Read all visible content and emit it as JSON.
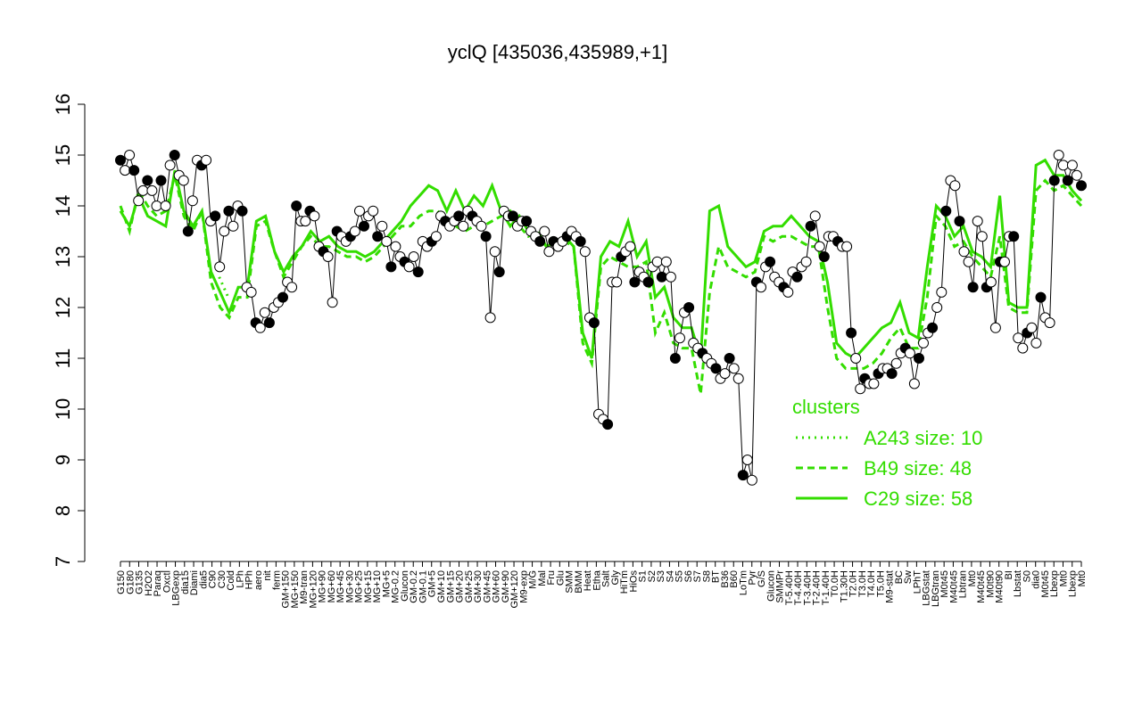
{
  "chart_data": {
    "type": "line",
    "title": "yclQ [435036,435989,+1]",
    "xlabel": "",
    "ylabel": "",
    "ylim": [
      7,
      16
    ],
    "yticks": [
      7,
      8,
      9,
      10,
      11,
      12,
      13,
      14,
      15,
      16
    ],
    "grid": false,
    "legend_placement": "bottom-right",
    "x_tick_labels": [
      "G150",
      "G180",
      "G135",
      "H2O2",
      "Paraq",
      "Oxctl",
      "LBGexp",
      "dia15",
      "Diami",
      "dia5",
      "C90",
      "C30",
      "Cold",
      "LPh",
      "HPh",
      "aero",
      "nit",
      "ferm",
      "GM+150",
      "MG+150",
      "M9-tran",
      "MG+120",
      "MG+90",
      "MG+60",
      "MG+45",
      "MG+30",
      "MG+25",
      "MG+15",
      "MG+10",
      "MG+5",
      "MG-0.2",
      "Glucon",
      "GM-0.2",
      "GM-0.1",
      "GM+5",
      "GM+10",
      "GM+15",
      "GM+20",
      "GM+25",
      "GM+30",
      "GM+45",
      "GM+60",
      "GM+90",
      "GM+120",
      "M9-exp",
      "M/G",
      "Mal",
      "Fru",
      "Glu",
      "SMM",
      "BMM",
      "Heat",
      "Etha",
      "Salt",
      "Gly",
      "HiTm",
      "HiOs",
      "S1",
      "S2",
      "S3",
      "S4",
      "S5",
      "S6",
      "S7",
      "S8",
      "BT",
      "B36",
      "B60",
      "LoTm",
      "Pyr",
      "G/S",
      "Glucon",
      "SMMPr",
      "T-5.40H",
      "T-4.40H",
      "T-3.40H",
      "T-2.40H",
      "T-1.40H",
      "T0.0H",
      "T1.30H",
      "T2.0H",
      "T3.0H",
      "T4.0H",
      "T5.0H",
      "M9-stat",
      "BC",
      "Sw",
      "LPhT",
      "LBGstat",
      "LBGtran",
      "M0t45",
      "M40t45",
      "Lbtran",
      "Mt0",
      "M40t45",
      "M0t90",
      "M40t90",
      "BI",
      "Lbstat",
      "S0",
      "dia0",
      "M0t45",
      "Lbexp",
      "Mt0",
      "Lbexp",
      "Mt0"
    ],
    "series": [
      {
        "type": "points",
        "values": [
          14.9,
          14.7,
          15.0,
          14.7,
          14.1,
          14.3,
          14.5,
          14.3,
          14.0,
          14.5,
          14.0,
          14.8,
          15.0,
          14.6,
          14.5,
          13.5,
          14.1,
          14.9,
          14.8,
          14.9,
          13.7,
          13.8,
          12.8,
          13.5,
          13.9,
          13.6,
          14.0,
          13.9,
          12.4,
          12.3,
          11.7,
          11.6,
          11.9,
          11.7,
          12.0,
          12.1,
          12.2,
          12.5,
          12.4,
          14.0,
          13.7,
          13.7,
          13.9,
          13.8,
          13.2,
          13.1,
          13.0,
          12.1,
          13.5,
          13.4,
          13.3,
          13.4,
          13.5,
          13.9,
          13.6,
          13.8,
          13.9,
          13.4,
          13.6,
          13.3,
          12.8,
          13.2,
          13.0,
          12.9,
          12.8,
          13.0,
          12.7,
          13.3,
          13.2,
          13.3,
          13.4,
          13.8,
          13.7,
          13.6,
          13.7,
          13.8,
          13.6,
          13.9,
          13.8,
          13.7,
          13.6,
          13.4,
          11.8,
          13.1,
          12.7,
          13.9,
          13.8,
          13.8,
          13.6,
          13.7,
          13.7,
          13.5,
          13.4,
          13.3,
          13.5,
          13.1,
          13.3,
          13.2,
          13.3,
          13.4,
          13.5,
          13.4,
          13.3,
          13.1,
          11.8,
          11.7,
          9.9,
          9.8,
          9.7,
          12.5,
          12.5,
          13.0,
          13.1,
          13.2,
          12.5,
          12.7,
          12.6,
          12.5,
          12.8,
          12.9,
          12.6,
          12.9,
          12.6,
          11.0,
          11.4,
          11.9,
          12.0,
          11.3,
          11.2,
          11.1,
          11.0,
          10.9,
          10.8,
          10.6,
          10.7,
          11.0,
          10.8,
          10.6,
          8.7,
          9.0,
          8.6,
          12.5,
          12.4,
          12.8,
          12.9,
          12.6,
          12.5,
          12.4,
          12.3,
          12.7,
          12.6,
          12.8,
          12.9,
          13.6,
          13.8,
          13.2,
          13.0,
          13.4,
          13.4,
          13.3,
          13.2,
          13.2,
          11.5,
          11.0,
          10.4,
          10.6,
          10.5,
          10.5,
          10.7,
          10.8,
          10.8,
          10.7,
          10.9,
          11.1,
          11.2,
          11.1,
          10.5,
          11.0,
          11.3,
          11.5,
          11.6,
          12.0,
          12.3,
          13.9,
          14.5,
          14.4,
          13.7,
          13.1,
          12.9,
          12.4,
          13.7,
          13.4,
          12.4,
          12.5,
          11.6,
          12.9,
          12.9,
          13.4,
          13.4,
          11.4,
          11.2,
          11.5,
          11.6,
          11.3,
          12.2,
          11.8,
          11.7,
          14.5,
          15.0,
          14.8,
          14.5,
          14.8,
          14.6,
          14.4
        ]
      }
    ],
    "legend": {
      "title": "clusters",
      "entries": [
        {
          "label": "A243 size: 10",
          "style": "dotted",
          "values": [
            null,
            null,
            null,
            null,
            null,
            null,
            null,
            null,
            null,
            null,
            null,
            12.6,
            12.2,
            null,
            null,
            null,
            null,
            null,
            null,
            null,
            null,
            null,
            null,
            null,
            null,
            null,
            null,
            null,
            null,
            null,
            null,
            null,
            null,
            null,
            null,
            null,
            null,
            null,
            null,
            null,
            null,
            null,
            null,
            null,
            null,
            null,
            null,
            null,
            null,
            null,
            null,
            null,
            10.4,
            null,
            null,
            null,
            null,
            null,
            null,
            null,
            10.7,
            null,
            null,
            null,
            10.5,
            null,
            null,
            null,
            null,
            null,
            null,
            null,
            null,
            null,
            null,
            null,
            null,
            null,
            null,
            null,
            null,
            null,
            null,
            null,
            null,
            null,
            null,
            null,
            null,
            null,
            null,
            null,
            null,
            null,
            null,
            null,
            null,
            null,
            null,
            null,
            null,
            null,
            null,
            null,
            null,
            null,
            null,
            null
          ]
        },
        {
          "label": "B49 size: 48",
          "style": "dashed",
          "values": [
            14.0,
            13.5,
            14.3,
            14.0,
            13.8,
            13.9,
            14.6,
            13.8,
            13.5,
            13.9,
            12.5,
            12.0,
            11.8,
            12.2,
            12.2,
            13.6,
            13.7,
            13.1,
            12.6,
            12.9,
            13.2,
            13.4,
            13.2,
            13.2,
            13.1,
            13.0,
            13.0,
            12.9,
            13.0,
            13.2,
            13.4,
            13.6,
            13.6,
            13.8,
            13.9,
            13.9,
            13.7,
            13.6,
            13.5,
            13.6,
            13.6,
            13.7,
            13.8,
            13.9,
            13.6,
            13.4,
            13.5,
            13.2,
            13.3,
            13.3,
            13.2,
            11.3,
            10.9,
            12.8,
            13.0,
            12.9,
            12.8,
            12.8,
            12.9,
            11.5,
            11.9,
            11.3,
            11.2,
            11.2,
            10.3,
            12.3,
            13.2,
            12.8,
            12.7,
            12.6,
            12.7,
            13.4,
            13.3,
            13.4,
            13.4,
            13.3,
            13.2,
            13.2,
            12.0,
            11.0,
            10.8,
            10.8,
            10.8,
            10.9,
            11.1,
            11.4,
            11.6,
            11.2,
            11.2,
            12.2,
            13.8,
            13.6,
            13.2,
            13.3,
            13.0,
            12.8,
            12.6,
            13.4,
            12.0,
            11.9,
            11.9,
            14.3,
            14.5,
            14.3,
            14.4,
            14.2,
            14.0
          ]
        },
        {
          "label": "C29 size: 58",
          "style": "solid",
          "values": [
            13.9,
            13.6,
            14.2,
            13.8,
            13.7,
            13.6,
            14.7,
            13.9,
            13.6,
            13.9,
            12.7,
            12.3,
            11.9,
            12.4,
            12.4,
            13.7,
            13.8,
            13.1,
            12.7,
            13.0,
            13.2,
            13.5,
            13.3,
            13.4,
            13.2,
            13.1,
            13.1,
            13.0,
            13.1,
            13.3,
            13.5,
            13.7,
            14.0,
            14.2,
            14.4,
            14.3,
            13.9,
            14.3,
            13.9,
            14.2,
            14.0,
            14.4,
            13.9,
            13.6,
            13.8,
            13.5,
            13.4,
            13.2,
            13.3,
            13.4,
            13.2,
            11.5,
            11.0,
            13.0,
            13.3,
            13.2,
            13.7,
            13.0,
            13.3,
            12.2,
            12.4,
            11.8,
            11.6,
            11.6,
            11.0,
            13.9,
            14.0,
            13.2,
            13.0,
            12.8,
            12.9,
            13.5,
            13.6,
            13.6,
            13.8,
            13.6,
            13.4,
            13.3,
            12.5,
            11.3,
            11.1,
            11.0,
            11.2,
            11.4,
            11.6,
            11.7,
            12.1,
            11.5,
            11.4,
            12.8,
            14.0,
            13.8,
            13.4,
            13.6,
            13.1,
            13.0,
            12.8,
            14.2,
            12.1,
            12.0,
            12.0,
            14.8,
            14.9,
            14.6,
            14.6,
            14.3,
            14.1
          ]
        }
      ]
    },
    "colors": {
      "clusters": "#33dd00",
      "points_fill_a": "#000000",
      "points_fill_b": "#ffffff",
      "axis": "#000000"
    }
  }
}
